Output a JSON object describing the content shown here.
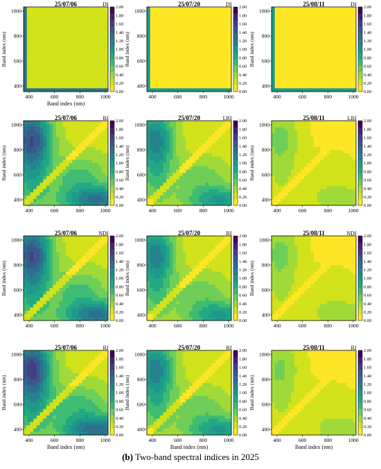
{
  "figure": {
    "caption_label": "(b)",
    "caption_text": "Two-band spectral indices in 2025"
  },
  "palette": [
    "#fde725",
    "#d2e21b",
    "#a0da39",
    "#6ece58",
    "#3fbc73",
    "#22a884",
    "#1f988b",
    "#25838e",
    "#2d708e",
    "#38598c",
    "#433e85",
    "#482173",
    "#440154"
  ],
  "chart_data": [
    {
      "type": "heatmap",
      "row": 0,
      "col": 0,
      "title": "25/07/06",
      "index": "DI",
      "xlabel": "Band index (nm)",
      "ylabel": "Band index (nm)",
      "xticks": [
        400,
        600,
        800,
        1000
      ],
      "yticks": [
        400,
        600,
        800,
        1000
      ],
      "colorbar": {
        "min": 0,
        "max": 2,
        "ticks": [
          "0.00",
          "0.20",
          "0.40",
          "0.60",
          "0.80",
          "1.00",
          "1.20",
          "1.40",
          "1.60",
          "1.80",
          "2.00"
        ]
      },
      "pattern": "di_early",
      "intensity": 0.25
    },
    {
      "type": "heatmap",
      "row": 0,
      "col": 1,
      "title": "25/07/20",
      "index": "DI",
      "xlabel": "",
      "ylabel": "Band index (nm)",
      "xticks": [
        400,
        600,
        800,
        1000
      ],
      "yticks": [
        400,
        600,
        800,
        1000
      ],
      "colorbar": {
        "min": 0,
        "max": 2,
        "ticks": [
          "0.00",
          "0.20",
          "0.40",
          "0.60",
          "0.80",
          "1.00",
          "1.20",
          "1.40",
          "1.60",
          "1.80",
          "2.00"
        ]
      },
      "pattern": "di",
      "intensity": 0.05
    },
    {
      "type": "heatmap",
      "row": 0,
      "col": 2,
      "title": "25/08/11",
      "index": "DI",
      "xlabel": "",
      "ylabel": "Band index (nm)",
      "xticks": [
        400,
        600,
        800,
        1000
      ],
      "yticks": [
        400,
        600,
        800,
        1000
      ],
      "colorbar": {
        "min": 0,
        "max": 2,
        "ticks": [
          "0.00",
          "0.20",
          "0.40",
          "0.60",
          "0.80",
          "1.00",
          "1.20",
          "1.40",
          "1.60",
          "1.80",
          "2.00"
        ]
      },
      "pattern": "di",
      "intensity": 0.08
    },
    {
      "type": "heatmap",
      "row": 1,
      "col": 0,
      "title": "25/07/06",
      "index": "RI",
      "xlabel": "",
      "ylabel": "Band index (nm)",
      "xticks": [
        400,
        600,
        800,
        1000
      ],
      "yticks": [
        400,
        600,
        800,
        1000
      ],
      "colorbar": {
        "min": 0,
        "max": 2,
        "ticks": [
          "0.00",
          "0.20",
          "0.40",
          "0.60",
          "0.80",
          "1.00",
          "1.20",
          "1.40",
          "1.60",
          "1.80",
          "2.00"
        ]
      },
      "pattern": "ratio",
      "intensity": 1.0
    },
    {
      "type": "heatmap",
      "row": 1,
      "col": 1,
      "title": "25/07/20",
      "index": "LRI",
      "xlabel": "",
      "ylabel": "Band index (nm)",
      "xticks": [
        400,
        600,
        800,
        1000
      ],
      "yticks": [
        400,
        600,
        800,
        1000
      ],
      "colorbar": {
        "min": 0,
        "max": 2,
        "ticks": [
          "0.00",
          "0.20",
          "0.40",
          "0.60",
          "0.80",
          "1.00",
          "1.20",
          "1.40",
          "1.60",
          "1.80",
          "2.00"
        ]
      },
      "pattern": "ratio",
      "intensity": 0.75
    },
    {
      "type": "heatmap",
      "row": 1,
      "col": 2,
      "title": "25/08/11",
      "index": "LRI",
      "xlabel": "",
      "ylabel": "Band index (nm)",
      "xticks": [
        400,
        600,
        800,
        1000
      ],
      "yticks": [
        400,
        600,
        800,
        1000
      ],
      "colorbar": {
        "min": 0,
        "max": 2,
        "ticks": [
          "0.00",
          "0.20",
          "0.40",
          "0.60",
          "0.80",
          "1.00",
          "1.20",
          "1.40",
          "1.60",
          "1.80",
          "2.00"
        ]
      },
      "pattern": "ratio",
      "intensity": 0.3
    },
    {
      "type": "heatmap",
      "row": 2,
      "col": 0,
      "title": "25/07/06",
      "index": "NDI",
      "xlabel": "",
      "ylabel": "Band index (nm)",
      "xticks": [
        400,
        600,
        800,
        1000
      ],
      "yticks": [
        400,
        600,
        800,
        1000
      ],
      "colorbar": {
        "min": 0,
        "max": 2,
        "ticks": [
          "0.00",
          "0.20",
          "0.40",
          "0.60",
          "0.80",
          "1.00",
          "1.20",
          "1.40",
          "1.60",
          "1.80",
          "2.00"
        ]
      },
      "pattern": "ratio",
      "intensity": 1.0
    },
    {
      "type": "heatmap",
      "row": 2,
      "col": 1,
      "title": "25/07/20",
      "index": "RI",
      "xlabel": "",
      "ylabel": "Band index (nm)",
      "xticks": [
        400,
        600,
        800,
        1000
      ],
      "yticks": [
        400,
        600,
        800,
        1000
      ],
      "colorbar": {
        "min": 0,
        "max": 2,
        "ticks": [
          "0.00",
          "0.20",
          "0.40",
          "0.60",
          "0.80",
          "1.00",
          "1.20",
          "1.40",
          "1.60",
          "1.80",
          "2.00"
        ]
      },
      "pattern": "ratio",
      "intensity": 0.75
    },
    {
      "type": "heatmap",
      "row": 2,
      "col": 2,
      "title": "25/08/11",
      "index": "NDI",
      "xlabel": "",
      "ylabel": "Band index (nm)",
      "xticks": [
        400,
        600,
        800,
        1000
      ],
      "yticks": [
        400,
        600,
        800,
        1000
      ],
      "colorbar": {
        "min": 0,
        "max": 2,
        "ticks": [
          "0.00",
          "0.20",
          "0.40",
          "0.60",
          "0.80",
          "1.00",
          "1.20",
          "1.40",
          "1.60",
          "1.80",
          "2.00"
        ]
      },
      "pattern": "ratio",
      "intensity": 0.3
    },
    {
      "type": "heatmap",
      "row": 3,
      "col": 0,
      "title": "25/07/06",
      "index": "RI",
      "xlabel": "Band index (nm)",
      "ylabel": "Band index (nm)",
      "xticks": [
        400,
        600,
        800,
        1000
      ],
      "yticks": [
        400,
        600,
        800,
        1000
      ],
      "colorbar": {
        "min": 0,
        "max": 2,
        "ticks": [
          "0.00",
          "0.20",
          "0.40",
          "0.60",
          "0.80",
          "1.00",
          "1.20",
          "1.40",
          "1.60",
          "1.80",
          "2.00"
        ]
      },
      "pattern": "ratio",
      "intensity": 1.05
    },
    {
      "type": "heatmap",
      "row": 3,
      "col": 1,
      "title": "25/07/20",
      "index": "RI",
      "xlabel": "Band index (nm)",
      "ylabel": "Band index (nm)",
      "xticks": [
        400,
        600,
        800,
        1000
      ],
      "yticks": [
        400,
        600,
        800,
        1000
      ],
      "colorbar": {
        "min": 0,
        "max": 2,
        "ticks": [
          "0.00",
          "0.20",
          "0.40",
          "0.60",
          "0.80",
          "1.00",
          "1.20",
          "1.40",
          "1.60",
          "1.80",
          "2.00"
        ]
      },
      "pattern": "ratio",
      "intensity": 0.75
    },
    {
      "type": "heatmap",
      "row": 3,
      "col": 2,
      "title": "25/08/11",
      "index": "RI",
      "xlabel": "Band index (nm)",
      "ylabel": "Band index (nm)",
      "xticks": [
        400,
        600,
        800,
        1000
      ],
      "yticks": [
        400,
        600,
        800,
        1000
      ],
      "colorbar": {
        "min": 0,
        "max": 2,
        "ticks": [
          "0.00",
          "0.20",
          "0.40",
          "0.60",
          "0.80",
          "1.00",
          "1.20",
          "1.40",
          "1.60",
          "1.80",
          "2.00"
        ]
      },
      "pattern": "ratio",
      "intensity": 0.28
    }
  ]
}
